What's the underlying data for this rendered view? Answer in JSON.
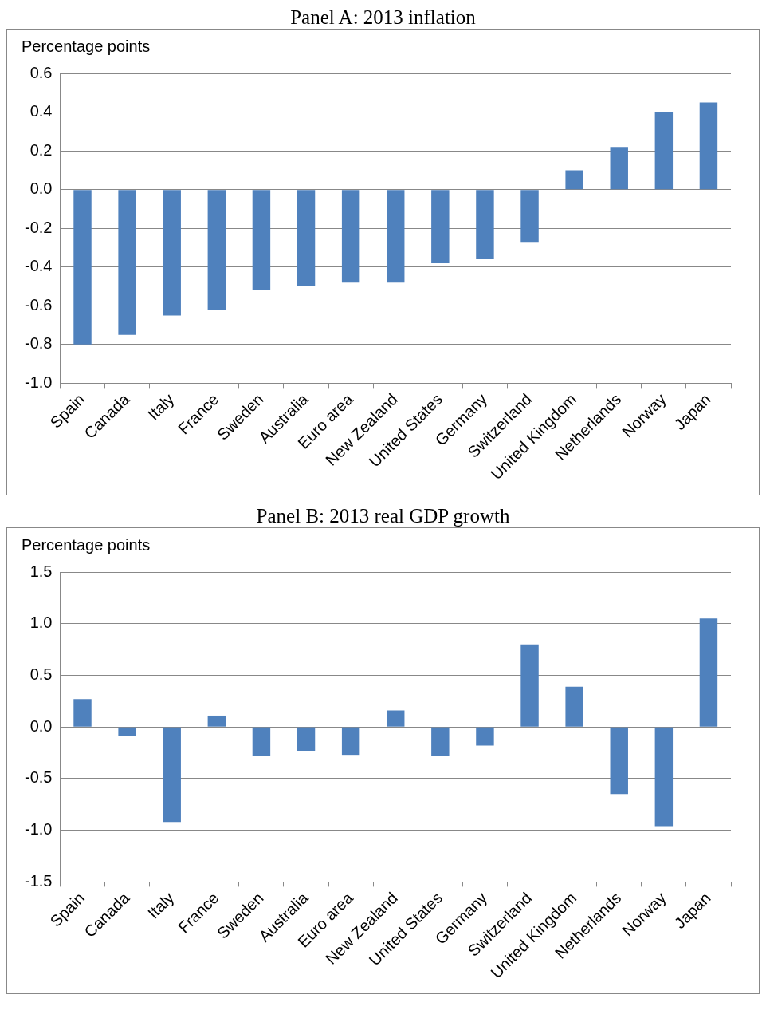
{
  "chart_data": [
    {
      "type": "bar",
      "title": "Panel A: 2013 inflation",
      "ylabel": "Percentage points",
      "categories": [
        "Spain",
        "Canada",
        "Italy",
        "France",
        "Sweden",
        "Australia",
        "Euro area",
        "New Zealand",
        "United States",
        "Germany",
        "Switzerland",
        "United Kingdom",
        "Netherlands",
        "Norway",
        "Japan"
      ],
      "values": [
        -0.8,
        -0.75,
        -0.65,
        -0.62,
        -0.52,
        -0.5,
        -0.48,
        -0.48,
        -0.38,
        -0.36,
        -0.27,
        0.1,
        0.22,
        0.4,
        0.45
      ],
      "color": "#4f81bd",
      "ylim": [
        -1.0,
        0.6
      ],
      "yticks": [
        {
          "value": -1.0,
          "label": "-1.0"
        },
        {
          "value": -0.8,
          "label": "-0.8"
        },
        {
          "value": -0.6,
          "label": "-0.6"
        },
        {
          "value": -0.4,
          "label": "-0.4"
        },
        {
          "value": -0.2,
          "label": "-0.2"
        },
        {
          "value": 0,
          "label": "0.0"
        },
        {
          "value": 0.2,
          "label": "0.2"
        },
        {
          "value": 0.4,
          "label": "0.4"
        },
        {
          "value": 0.6,
          "label": "0.6"
        }
      ],
      "grid": "y",
      "legend": false
    },
    {
      "type": "bar",
      "title": "Panel B: 2013 real GDP growth",
      "ylabel": "Percentage points",
      "categories": [
        "Spain",
        "Canada",
        "Italy",
        "France",
        "Sweden",
        "Australia",
        "Euro area",
        "New Zealand",
        "United States",
        "Germany",
        "Switzerland",
        "United Kingdom",
        "Netherlands",
        "Norway",
        "Japan"
      ],
      "values": [
        0.27,
        -0.09,
        -0.92,
        0.11,
        -0.28,
        -0.23,
        -0.27,
        0.16,
        -0.28,
        -0.18,
        0.8,
        0.39,
        -0.65,
        -0.96,
        1.05
      ],
      "color": "#4f81bd",
      "ylim": [
        -1.5,
        1.5
      ],
      "yticks": [
        {
          "value": -1.5,
          "label": "-1.5"
        },
        {
          "value": -1.0,
          "label": "-1.0"
        },
        {
          "value": -0.5,
          "label": "-0.5"
        },
        {
          "value": 0,
          "label": "0.0"
        },
        {
          "value": 0.5,
          "label": "0.5"
        },
        {
          "value": 1.0,
          "label": "1.0"
        },
        {
          "value": 1.5,
          "label": "1.5"
        }
      ],
      "grid": "y",
      "legend": false
    }
  ]
}
